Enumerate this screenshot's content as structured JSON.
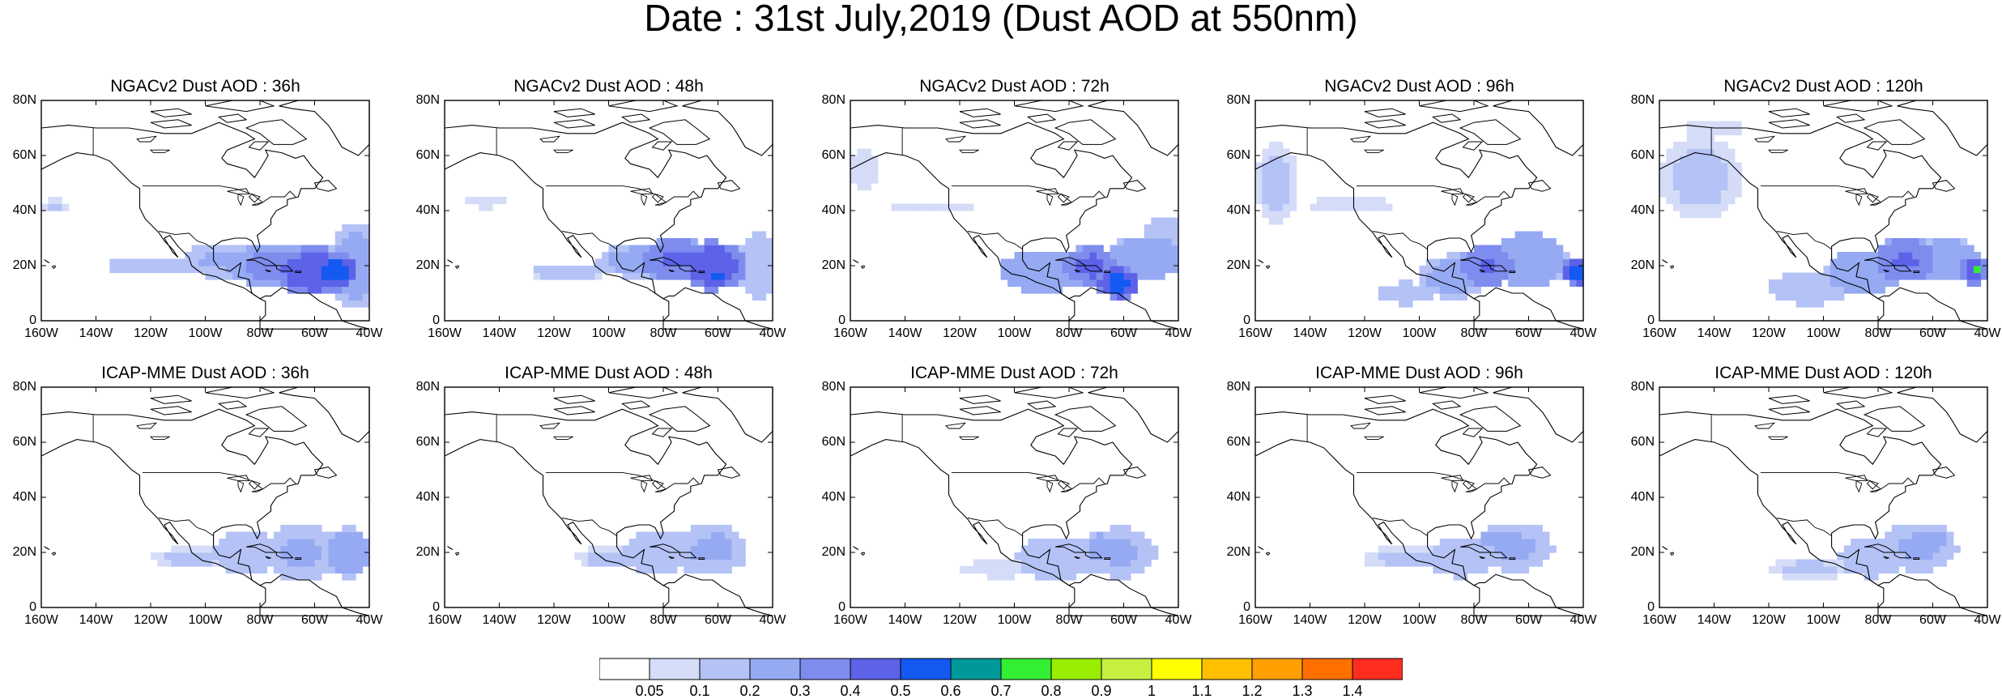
{
  "title": "Date : 31st July,2019 (Dust AOD at 550nm)",
  "panels": [
    {
      "title": "NGACv2 Dust AOD : 36h",
      "plume": [
        [
          -120,
          20,
          16,
          3.5,
          0.2
        ],
        [
          -95,
          22,
          14,
          6,
          0.22
        ],
        [
          -75,
          20,
          18,
          8,
          0.35
        ],
        [
          -60,
          18,
          15,
          9,
          0.5
        ],
        [
          -52,
          18,
          8,
          5,
          0.6
        ],
        [
          -45,
          20,
          10,
          16,
          0.25
        ],
        [
          -155,
          42,
          6,
          2,
          0.12
        ]
      ]
    },
    {
      "title": "NGACv2 Dust AOD : 48h",
      "plume": [
        [
          -115,
          18,
          14,
          3,
          0.15
        ],
        [
          -90,
          22,
          14,
          6,
          0.25
        ],
        [
          -75,
          22,
          14,
          8,
          0.42
        ],
        [
          -62,
          20,
          12,
          9,
          0.5
        ],
        [
          -60,
          17,
          5,
          2.5,
          0.6
        ],
        [
          -45,
          20,
          8,
          12,
          0.2
        ],
        [
          -145,
          43,
          7,
          2,
          0.1
        ]
      ]
    },
    {
      "title": "NGACv2 Dust AOD : 72h",
      "plume": [
        [
          -90,
          18,
          16,
          8,
          0.3
        ],
        [
          -72,
          20,
          10,
          7,
          0.45
        ],
        [
          -62,
          14,
          8,
          6,
          0.55
        ],
        [
          -52,
          23,
          14,
          8,
          0.3
        ],
        [
          -45,
          30,
          8,
          8,
          0.15
        ],
        [
          -130,
          41,
          14,
          2,
          0.08
        ],
        [
          -155,
          55,
          5,
          9,
          0.1
        ]
      ]
    },
    {
      "title": "NGACv2 Dust AOD : 96h",
      "plume": [
        [
          -88,
          16,
          12,
          8,
          0.25
        ],
        [
          -75,
          20,
          10,
          8,
          0.42
        ],
        [
          -60,
          22,
          14,
          10,
          0.3
        ],
        [
          -42,
          18,
          6,
          5,
          0.55
        ],
        [
          -152,
          50,
          8,
          15,
          0.12
        ],
        [
          -125,
          42,
          16,
          3,
          0.08
        ],
        [
          -105,
          10,
          10,
          4,
          0.15
        ]
      ]
    },
    {
      "title": "NGACv2 Dust AOD : 120h",
      "plume": [
        [
          -85,
          18,
          14,
          8,
          0.3
        ],
        [
          -70,
          22,
          12,
          8,
          0.42
        ],
        [
          -55,
          22,
          12,
          8,
          0.3
        ],
        [
          -45,
          18,
          5,
          5,
          0.5
        ],
        [
          -44,
          19,
          2,
          2,
          0.75
        ],
        [
          -145,
          52,
          15,
          15,
          0.12
        ],
        [
          -140,
          70,
          12,
          3,
          0.1
        ],
        [
          -105,
          12,
          15,
          6,
          0.18
        ]
      ]
    },
    {
      "title": "ICAP-MME Dust AOD : 36h",
      "plume": [
        [
          -105,
          18,
          14,
          4,
          0.12
        ],
        [
          -85,
          20,
          12,
          8,
          0.18
        ],
        [
          -65,
          20,
          14,
          10,
          0.22
        ],
        [
          -48,
          20,
          8,
          9,
          0.3
        ]
      ]
    },
    {
      "title": "ICAP-MME Dust AOD : 48h",
      "plume": [
        [
          -100,
          18,
          12,
          4,
          0.12
        ],
        [
          -82,
          20,
          12,
          8,
          0.18
        ],
        [
          -63,
          21,
          14,
          9,
          0.22
        ],
        [
          -60,
          22,
          6,
          6,
          0.28
        ]
      ]
    },
    {
      "title": "ICAP-MME Dust AOD : 72h",
      "plume": [
        [
          -105,
          14,
          14,
          3,
          0.1
        ],
        [
          -85,
          18,
          14,
          8,
          0.18
        ],
        [
          -62,
          20,
          14,
          9,
          0.22
        ],
        [
          -68,
          22,
          6,
          5,
          0.27
        ]
      ]
    },
    {
      "title": "ICAP-MME Dust AOD : 96h",
      "plume": [
        [
          -105,
          18,
          16,
          4,
          0.12
        ],
        [
          -85,
          18,
          12,
          7,
          0.18
        ],
        [
          -65,
          22,
          14,
          9,
          0.22
        ],
        [
          -72,
          25,
          6,
          4,
          0.27
        ]
      ]
    },
    {
      "title": "ICAP-MME Dust AOD : 120h",
      "plume": [
        [
          -105,
          14,
          14,
          4,
          0.12
        ],
        [
          -82,
          18,
          12,
          7,
          0.18
        ],
        [
          -65,
          22,
          14,
          9,
          0.22
        ],
        [
          -60,
          25,
          6,
          4,
          0.28
        ]
      ]
    }
  ],
  "axes": {
    "y_ticks": [
      "80N",
      "60N",
      "40N",
      "20N",
      "0"
    ],
    "y_values": [
      80,
      60,
      40,
      20,
      0
    ],
    "x_ticks": [
      "160W",
      "140W",
      "120W",
      "100W",
      "80W",
      "60W",
      "40W"
    ],
    "x_values": [
      -160,
      -140,
      -120,
      -100,
      -80,
      -60,
      -40
    ],
    "lon_range": [
      -160,
      -40
    ],
    "lat_range": [
      0,
      80
    ]
  },
  "colorbar": {
    "labels": [
      "0.05",
      "0.1",
      "0.2",
      "0.3",
      "0.4",
      "0.5",
      "0.6",
      "0.7",
      "0.8",
      "0.9",
      "1",
      "1.1",
      "1.2",
      "1.3",
      "1.4"
    ],
    "levels": [
      0.05,
      0.1,
      0.2,
      0.3,
      0.4,
      0.5,
      0.6,
      0.7,
      0.8,
      0.9,
      1,
      1.1,
      1.2,
      1.3,
      1.4
    ],
    "colors": [
      "#ffffff",
      "#d4dcf8",
      "#b4c2f6",
      "#96aaf3",
      "#7e8cee",
      "#5d62e8",
      "#1459f2",
      "#009999",
      "#33ee33",
      "#99ee00",
      "#c6f040",
      "#ffff00",
      "#ffc000",
      "#ff9f00",
      "#ff7000",
      "#ff2d1f"
    ]
  }
}
